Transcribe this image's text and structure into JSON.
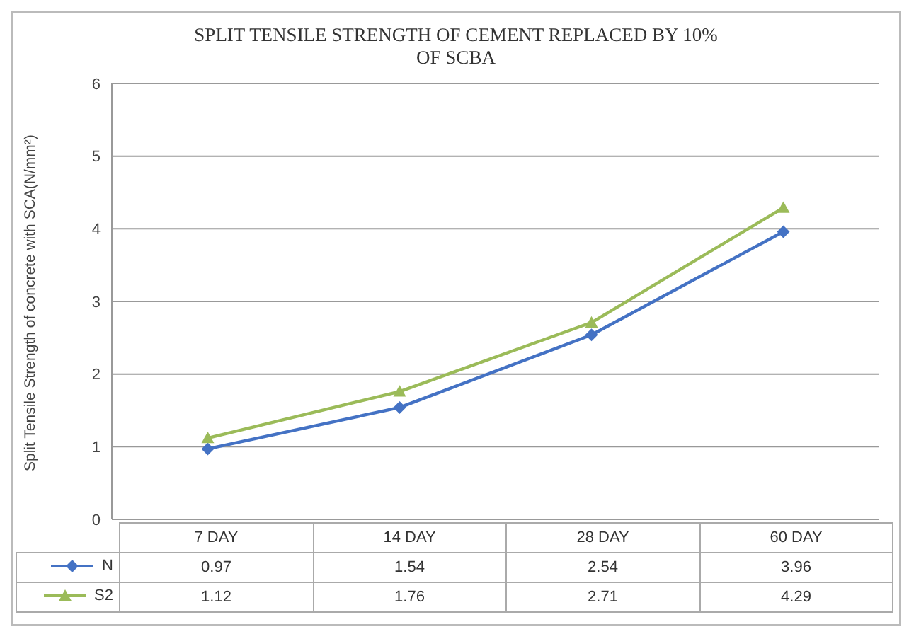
{
  "chart_data": {
    "type": "line",
    "title": "SPLIT TENSILE STRENGTH OF CEMENT REPLACED BY 10% OF SCBA",
    "ylabel": "Split Tensile Strength of concrete with SCA(N/mm²)",
    "categories": [
      "7 DAY",
      "14 DAY",
      "28 DAY",
      "60 DAY"
    ],
    "series": [
      {
        "name": "N",
        "color": "#4472c4",
        "marker": "diamond",
        "values": [
          0.97,
          1.54,
          2.54,
          3.96
        ]
      },
      {
        "name": "S2",
        "color": "#9bbb59",
        "marker": "triangle",
        "values": [
          1.12,
          1.76,
          2.71,
          4.29
        ]
      }
    ],
    "ylim": [
      0,
      6
    ],
    "yticks": [
      0,
      1,
      2,
      3,
      4,
      5,
      6
    ],
    "grid": "y",
    "legend": "bottom",
    "data_labels": true
  }
}
